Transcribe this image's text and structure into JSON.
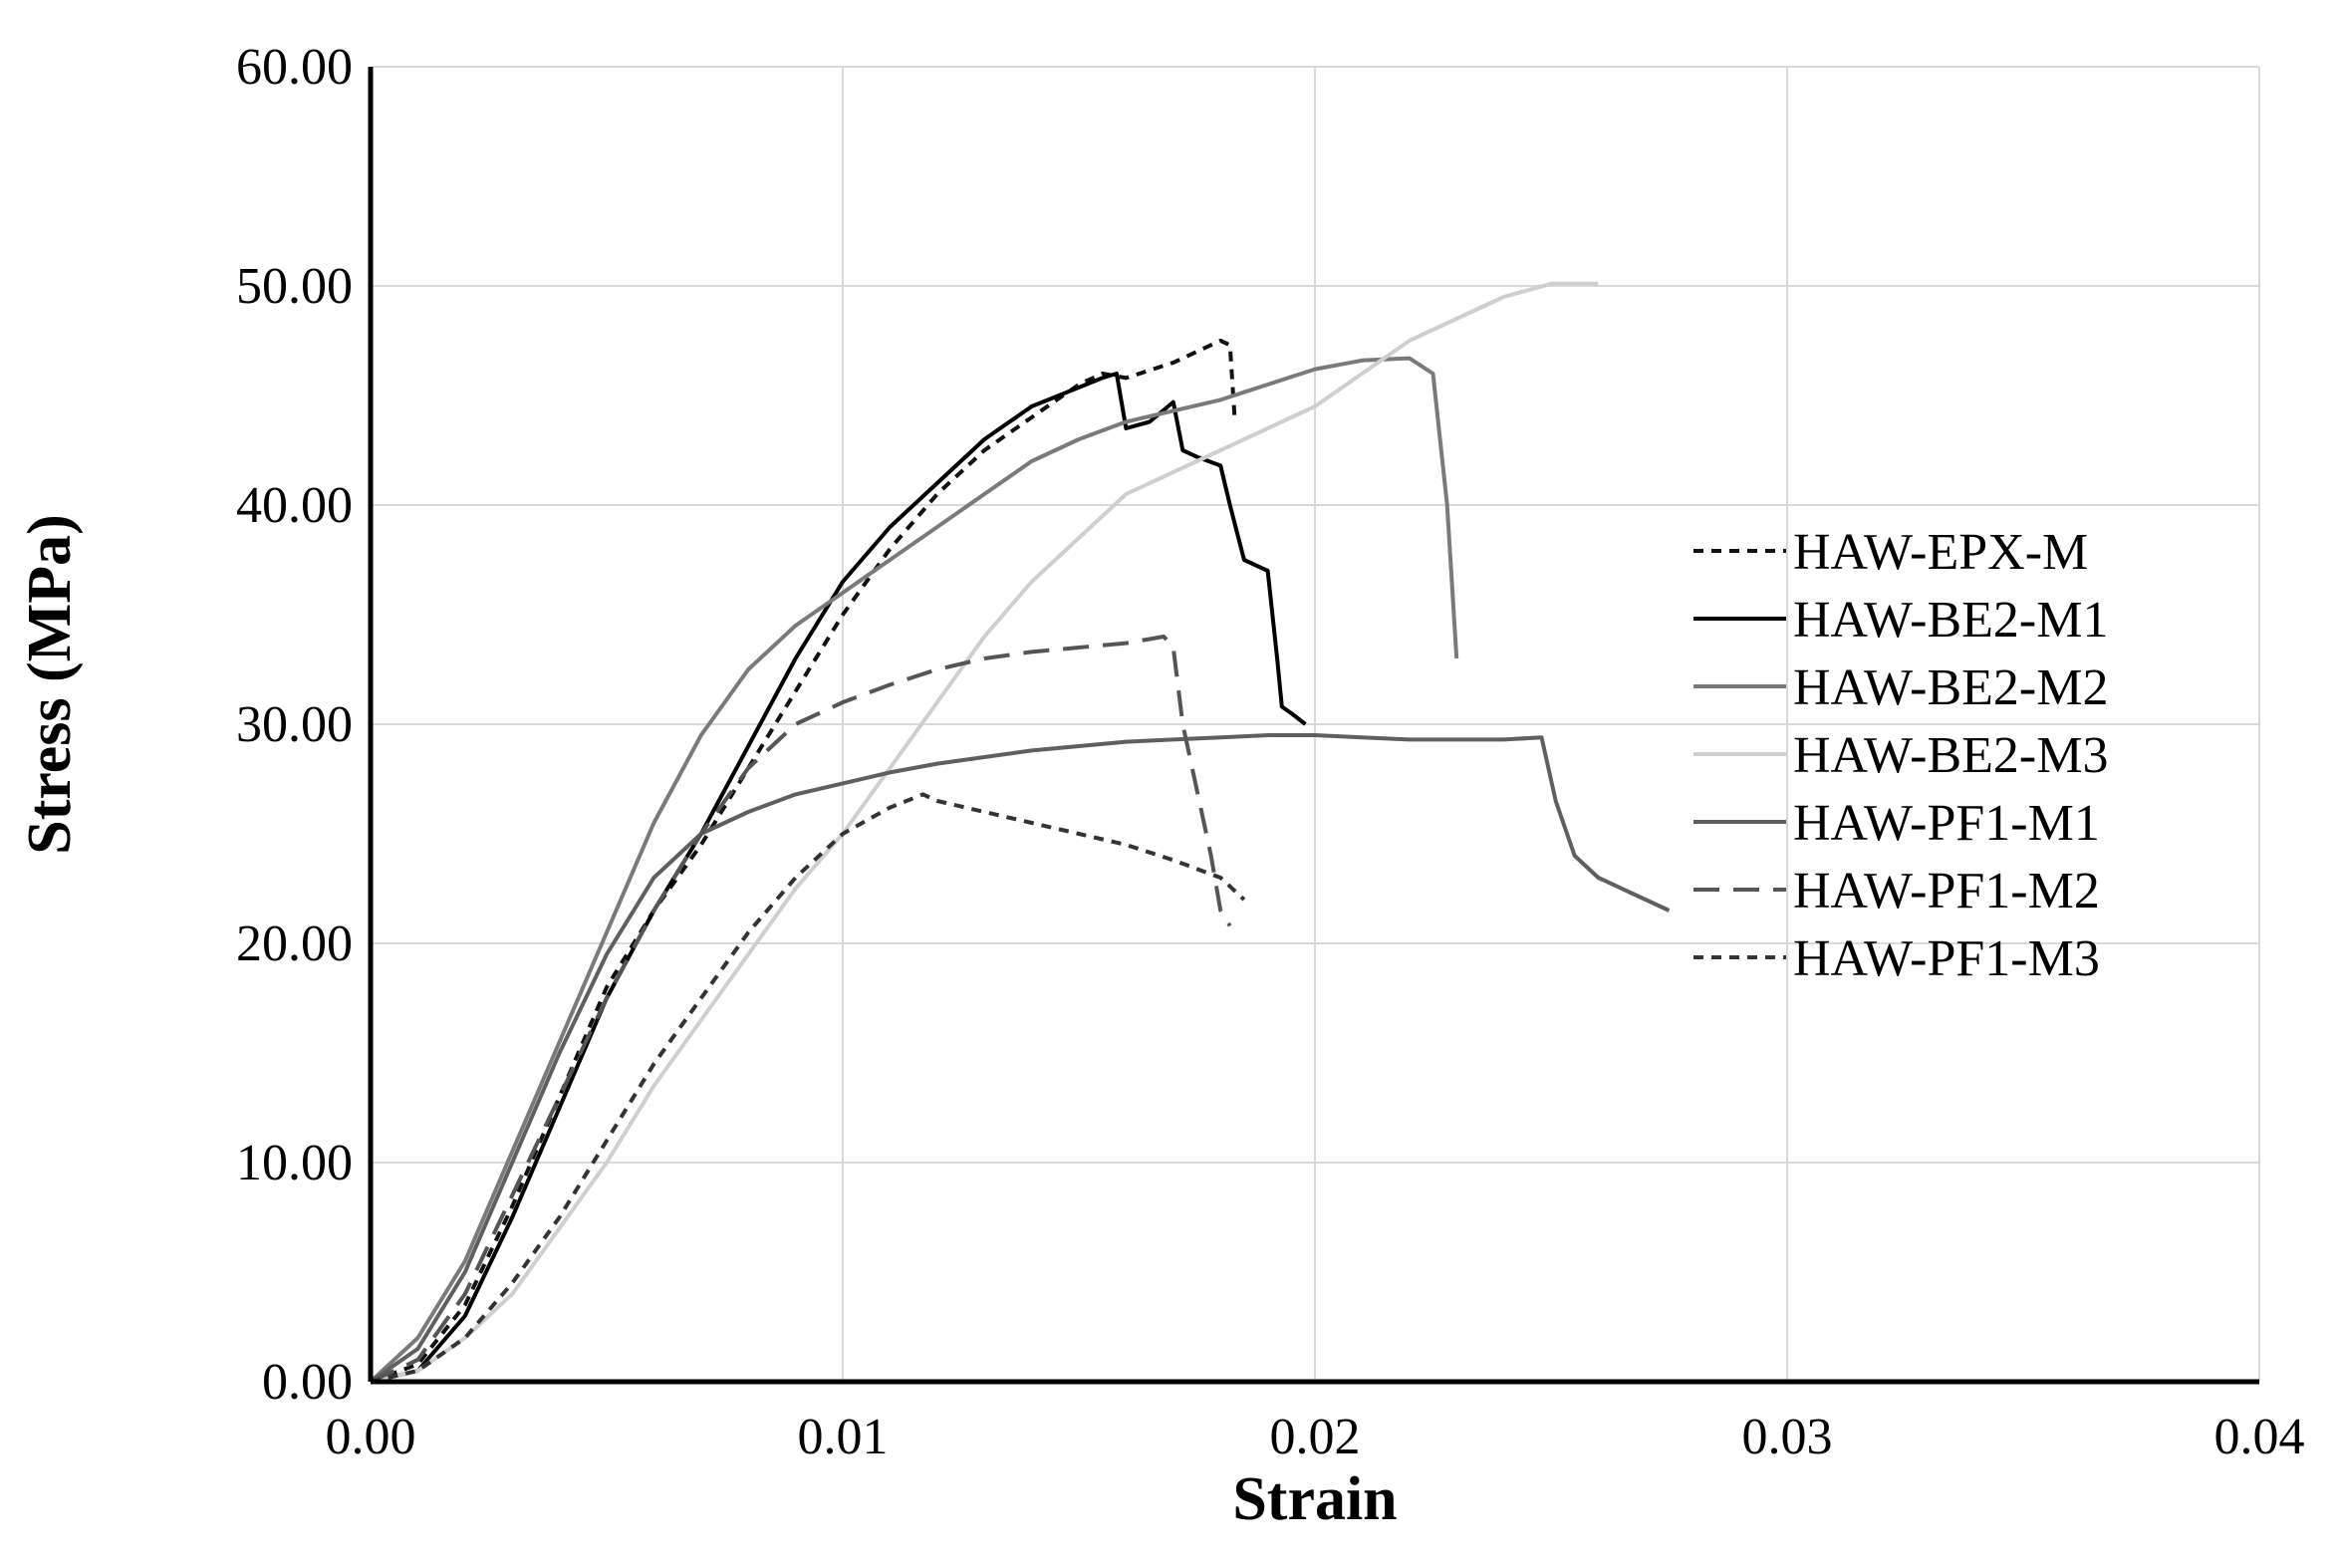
{
  "chart_data": {
    "type": "line",
    "xlabel": "Strain",
    "ylabel": "Stress (MPa)",
    "xlim": [
      0,
      0.04
    ],
    "ylim": [
      0,
      60
    ],
    "x_ticks": [
      "0.00",
      "0.01",
      "0.02",
      "0.03",
      "0.04"
    ],
    "y_ticks": [
      "0.00",
      "10.00",
      "20.00",
      "30.00",
      "40.00",
      "50.00",
      "60.00"
    ],
    "grid": true,
    "legend_position": "right",
    "series": [
      {
        "name": "HAW-EPX-M",
        "color": "#111111",
        "dash": "short-dash",
        "x": [
          0,
          0.001,
          0.002,
          0.003,
          0.004,
          0.005,
          0.006,
          0.007,
          0.008,
          0.009,
          0.01,
          0.011,
          0.012,
          0.013,
          0.014,
          0.015,
          0.0155,
          0.016,
          0.017,
          0.018,
          0.0182,
          0.0183
        ],
        "y": [
          0,
          0.8,
          3.5,
          8.0,
          13.0,
          18.0,
          21.5,
          24.5,
          28.0,
          31.5,
          35.0,
          38.0,
          40.5,
          42.5,
          44.0,
          45.5,
          46.0,
          45.8,
          46.5,
          47.5,
          47.3,
          44.0
        ]
      },
      {
        "name": "HAW-BE2-M1",
        "color": "#000000",
        "dash": "solid",
        "x": [
          0,
          0.001,
          0.002,
          0.003,
          0.004,
          0.005,
          0.006,
          0.007,
          0.008,
          0.009,
          0.01,
          0.011,
          0.012,
          0.013,
          0.014,
          0.0155,
          0.0158,
          0.016,
          0.0165,
          0.017,
          0.0172,
          0.0175,
          0.018,
          0.0182,
          0.0185,
          0.019,
          0.0192,
          0.0193,
          0.0195,
          0.0198
        ],
        "y": [
          0,
          0.5,
          3.0,
          7.5,
          12.5,
          17.5,
          21.5,
          25.0,
          29.0,
          33.0,
          36.5,
          39.0,
          41.0,
          43.0,
          44.5,
          45.8,
          46.0,
          43.5,
          43.8,
          44.7,
          42.5,
          42.2,
          41.8,
          40.0,
          37.5,
          37.0,
          33.0,
          30.8,
          30.5,
          30.0
        ]
      },
      {
        "name": "HAW-BE2-M2",
        "color": "#7a7a7a",
        "dash": "solid",
        "x": [
          0,
          0.001,
          0.002,
          0.003,
          0.004,
          0.005,
          0.006,
          0.007,
          0.008,
          0.009,
          0.01,
          0.011,
          0.012,
          0.013,
          0.014,
          0.015,
          0.016,
          0.017,
          0.018,
          0.019,
          0.02,
          0.021,
          0.022,
          0.0225,
          0.0228,
          0.023
        ],
        "y": [
          0,
          2.0,
          5.5,
          10.5,
          15.5,
          20.5,
          25.5,
          29.5,
          32.5,
          34.5,
          36.0,
          37.5,
          39.0,
          40.5,
          42.0,
          43.0,
          43.8,
          44.3,
          44.8,
          45.5,
          46.2,
          46.6,
          46.7,
          46.0,
          40.0,
          33.0
        ]
      },
      {
        "name": "HAW-BE2-M3",
        "color": "#cfcfcf",
        "dash": "solid",
        "x": [
          0,
          0.001,
          0.002,
          0.003,
          0.004,
          0.005,
          0.006,
          0.007,
          0.008,
          0.009,
          0.01,
          0.011,
          0.012,
          0.013,
          0.014,
          0.015,
          0.016,
          0.017,
          0.018,
          0.019,
          0.02,
          0.021,
          0.022,
          0.023,
          0.024,
          0.025,
          0.026
        ],
        "y": [
          0,
          0.5,
          2.0,
          4.0,
          7.0,
          10.0,
          13.5,
          16.5,
          19.5,
          22.5,
          25.0,
          28.0,
          31.0,
          34.0,
          36.5,
          38.5,
          40.5,
          41.5,
          42.5,
          43.5,
          44.5,
          46.0,
          47.5,
          48.5,
          49.5,
          50.1,
          50.1
        ]
      },
      {
        "name": "HAW-PF1-M1",
        "color": "#5f5f5f",
        "dash": "solid",
        "x": [
          0,
          0.001,
          0.002,
          0.003,
          0.004,
          0.005,
          0.006,
          0.007,
          0.008,
          0.009,
          0.01,
          0.011,
          0.012,
          0.013,
          0.014,
          0.015,
          0.016,
          0.017,
          0.018,
          0.019,
          0.02,
          0.021,
          0.022,
          0.023,
          0.024,
          0.0248,
          0.0251,
          0.0255,
          0.026,
          0.027,
          0.0275
        ],
        "y": [
          0,
          1.5,
          5.0,
          10.0,
          15.0,
          19.5,
          23.0,
          25.0,
          26.0,
          26.8,
          27.3,
          27.8,
          28.2,
          28.5,
          28.8,
          29.0,
          29.2,
          29.3,
          29.4,
          29.5,
          29.5,
          29.4,
          29.3,
          29.3,
          29.3,
          29.4,
          26.5,
          24.0,
          23.0,
          22.0,
          21.5
        ]
      },
      {
        "name": "HAW-PF1-M2",
        "color": "#555555",
        "dash": "long-dash",
        "x": [
          0,
          0.001,
          0.002,
          0.003,
          0.004,
          0.005,
          0.006,
          0.007,
          0.008,
          0.009,
          0.01,
          0.011,
          0.012,
          0.013,
          0.014,
          0.015,
          0.016,
          0.0168,
          0.017,
          0.0172,
          0.0175,
          0.0178,
          0.018,
          0.0182
        ],
        "y": [
          0,
          1.0,
          4.0,
          8.5,
          13.0,
          17.5,
          21.5,
          25.0,
          28.0,
          30.0,
          31.0,
          31.8,
          32.5,
          33.0,
          33.3,
          33.5,
          33.7,
          34.0,
          33.5,
          30.0,
          27.0,
          24.0,
          21.5,
          20.8
        ]
      },
      {
        "name": "HAW-PF1-M3",
        "color": "#333333",
        "dash": "short-dash",
        "x": [
          0,
          0.001,
          0.002,
          0.003,
          0.004,
          0.005,
          0.006,
          0.007,
          0.008,
          0.009,
          0.01,
          0.011,
          0.0117,
          0.012,
          0.013,
          0.014,
          0.015,
          0.016,
          0.017,
          0.018,
          0.0185
        ],
        "y": [
          0,
          0.5,
          2.0,
          4.5,
          7.5,
          11.0,
          14.5,
          17.5,
          20.5,
          23.0,
          25.0,
          26.2,
          26.8,
          26.5,
          26.0,
          25.5,
          25.0,
          24.5,
          23.8,
          23.0,
          22.0
        ]
      }
    ]
  }
}
